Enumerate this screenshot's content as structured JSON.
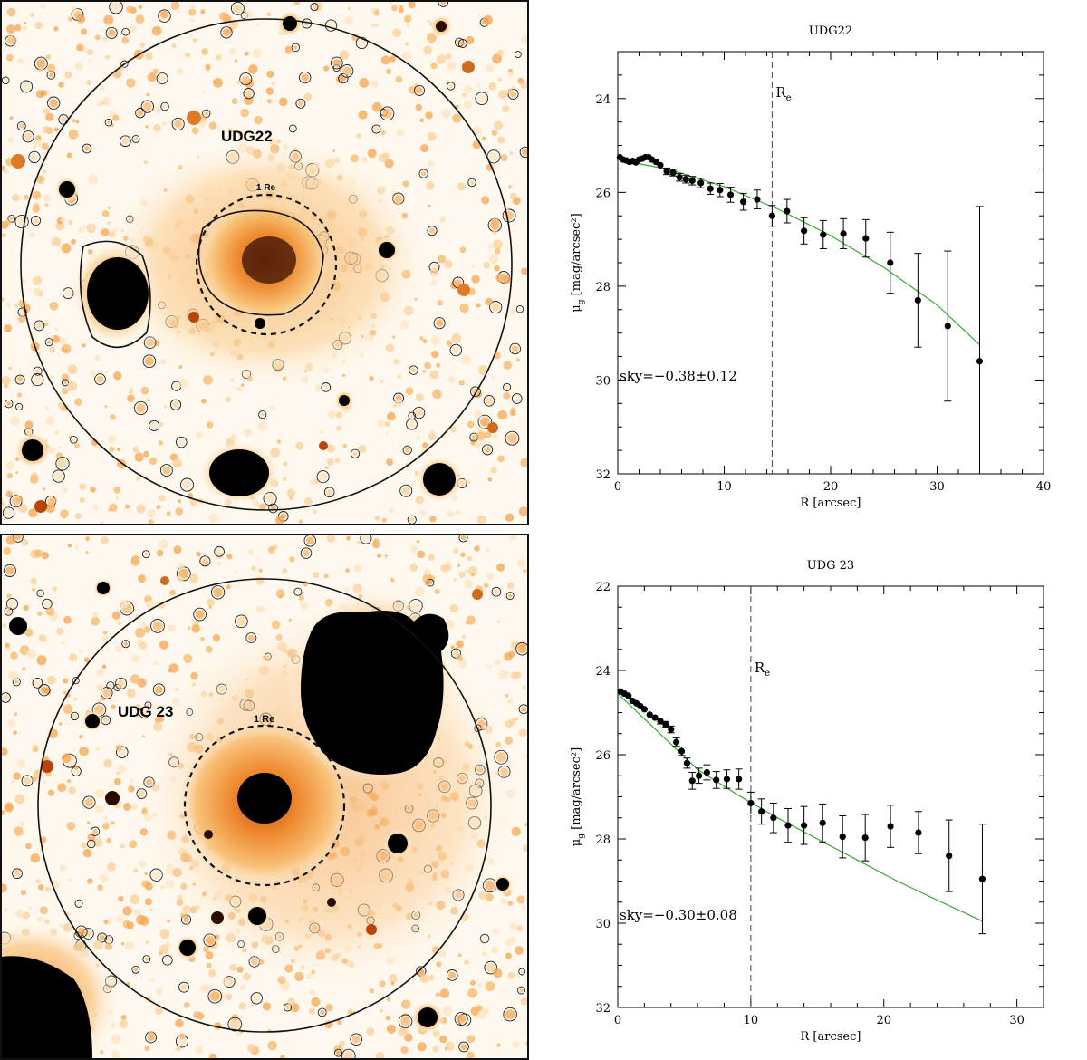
{
  "images": [
    {
      "label": "UDG22",
      "re_label": "1 Re"
    },
    {
      "label": "UDG 23",
      "re_label": "1 Re"
    }
  ],
  "colors": {
    "model_line": "#3aa832",
    "points": "#000000",
    "image_bright": "#e8781e",
    "image_mid": "#f5b865",
    "image_faint": "#fde4c0"
  },
  "chart_data": [
    {
      "type": "scatter",
      "title": "UDG22",
      "xlabel": "R [arcsec]",
      "ylabel": "μg [mag/arcsec²]",
      "ylabel_main": "μ",
      "ylabel_sub": "g",
      "ylabel_rest": " [mag/arcsec²]",
      "xlim": [
        0,
        40
      ],
      "ylim": [
        32,
        23
      ],
      "y_inverted": true,
      "xticks": [
        0,
        10,
        20,
        30,
        40
      ],
      "yticks": [
        24,
        26,
        28,
        30,
        32
      ],
      "re_value": 14.5,
      "re_label_main": "R",
      "re_label_sub": "e",
      "annotation": "sky=−0.38±0.12",
      "points": [
        {
          "x": 0.2,
          "y": 25.25,
          "err": 0.04
        },
        {
          "x": 0.5,
          "y": 25.3,
          "err": 0.04
        },
        {
          "x": 0.8,
          "y": 25.32,
          "err": 0.04
        },
        {
          "x": 1.1,
          "y": 25.35,
          "err": 0.05
        },
        {
          "x": 1.4,
          "y": 25.33,
          "err": 0.05
        },
        {
          "x": 1.7,
          "y": 25.36,
          "err": 0.05
        },
        {
          "x": 2.0,
          "y": 25.3,
          "err": 0.05
        },
        {
          "x": 2.3,
          "y": 25.28,
          "err": 0.05
        },
        {
          "x": 2.6,
          "y": 25.25,
          "err": 0.05
        },
        {
          "x": 2.9,
          "y": 25.25,
          "err": 0.05
        },
        {
          "x": 3.2,
          "y": 25.3,
          "err": 0.06
        },
        {
          "x": 3.6,
          "y": 25.35,
          "err": 0.06
        },
        {
          "x": 4.0,
          "y": 25.42,
          "err": 0.06
        },
        {
          "x": 4.6,
          "y": 25.55,
          "err": 0.07
        },
        {
          "x": 5.2,
          "y": 25.58,
          "err": 0.07
        },
        {
          "x": 5.8,
          "y": 25.68,
          "err": 0.08
        },
        {
          "x": 6.4,
          "y": 25.72,
          "err": 0.08
        },
        {
          "x": 7.0,
          "y": 25.75,
          "err": 0.09
        },
        {
          "x": 7.8,
          "y": 25.8,
          "err": 0.1
        },
        {
          "x": 8.7,
          "y": 25.92,
          "err": 0.12
        },
        {
          "x": 9.6,
          "y": 25.95,
          "err": 0.14
        },
        {
          "x": 10.6,
          "y": 26.05,
          "err": 0.16
        },
        {
          "x": 11.8,
          "y": 26.2,
          "err": 0.18
        },
        {
          "x": 13.1,
          "y": 26.15,
          "err": 0.2
        },
        {
          "x": 14.5,
          "y": 26.5,
          "err": 0.22
        },
        {
          "x": 15.9,
          "y": 26.4,
          "err": 0.25
        },
        {
          "x": 17.5,
          "y": 26.82,
          "err": 0.28
        },
        {
          "x": 19.3,
          "y": 26.9,
          "err": 0.3
        },
        {
          "x": 21.2,
          "y": 26.88,
          "err": 0.32
        },
        {
          "x": 23.3,
          "y": 26.98,
          "err": 0.4
        },
        {
          "x": 25.6,
          "y": 27.5,
          "err": 0.65
        },
        {
          "x": 28.2,
          "y": 28.3,
          "err": 1.0
        },
        {
          "x": 31.0,
          "y": 28.85,
          "err": 1.6
        },
        {
          "x": 34.0,
          "y": 29.6,
          "err": 3.3
        }
      ],
      "model": {
        "x": [
          0,
          5,
          10,
          15,
          20,
          25,
          30,
          34
        ],
        "y": [
          25.3,
          25.52,
          25.88,
          26.35,
          26.92,
          27.6,
          28.4,
          29.25
        ]
      }
    },
    {
      "type": "scatter",
      "title": "UDG 23",
      "xlabel": "R [arcsec]",
      "ylabel": "μg [mag/arcsec²]",
      "ylabel_main": "μ",
      "ylabel_sub": "g",
      "ylabel_rest": " [mag/arcsec²]",
      "xlim": [
        0,
        32
      ],
      "ylim": [
        32,
        22
      ],
      "y_inverted": true,
      "xticks": [
        0,
        10,
        20,
        30
      ],
      "yticks": [
        22,
        24,
        26,
        28,
        30,
        32
      ],
      "re_value": 10,
      "re_label_main": "R",
      "re_label_sub": "e",
      "annotation": "sky=−0.30±0.08",
      "points": [
        {
          "x": 0.2,
          "y": 24.5,
          "err": 0.04
        },
        {
          "x": 0.5,
          "y": 24.55,
          "err": 0.04
        },
        {
          "x": 0.8,
          "y": 24.6,
          "err": 0.04
        },
        {
          "x": 1.1,
          "y": 24.72,
          "err": 0.05
        },
        {
          "x": 1.4,
          "y": 24.78,
          "err": 0.05
        },
        {
          "x": 1.7,
          "y": 24.85,
          "err": 0.05
        },
        {
          "x": 2.0,
          "y": 24.92,
          "err": 0.05
        },
        {
          "x": 2.4,
          "y": 25.05,
          "err": 0.06
        },
        {
          "x": 2.8,
          "y": 25.12,
          "err": 0.06
        },
        {
          "x": 3.2,
          "y": 25.2,
          "err": 0.07
        },
        {
          "x": 3.6,
          "y": 25.28,
          "err": 0.07
        },
        {
          "x": 4.0,
          "y": 25.4,
          "err": 0.08
        },
        {
          "x": 4.4,
          "y": 25.7,
          "err": 0.1
        },
        {
          "x": 4.8,
          "y": 25.92,
          "err": 0.1
        },
        {
          "x": 5.2,
          "y": 26.2,
          "err": 0.12
        },
        {
          "x": 5.6,
          "y": 26.62,
          "err": 0.2
        },
        {
          "x": 6.1,
          "y": 26.5,
          "err": 0.18
        },
        {
          "x": 6.7,
          "y": 26.42,
          "err": 0.18
        },
        {
          "x": 7.4,
          "y": 26.6,
          "err": 0.2
        },
        {
          "x": 8.2,
          "y": 26.58,
          "err": 0.22
        },
        {
          "x": 9.1,
          "y": 26.58,
          "err": 0.24
        },
        {
          "x": 10.0,
          "y": 27.15,
          "err": 0.26
        },
        {
          "x": 10.8,
          "y": 27.35,
          "err": 0.3
        },
        {
          "x": 11.7,
          "y": 27.5,
          "err": 0.35
        },
        {
          "x": 12.8,
          "y": 27.68,
          "err": 0.4
        },
        {
          "x": 14.0,
          "y": 27.68,
          "err": 0.45
        },
        {
          "x": 15.4,
          "y": 27.62,
          "err": 0.45
        },
        {
          "x": 16.9,
          "y": 27.95,
          "err": 0.5
        },
        {
          "x": 18.6,
          "y": 27.97,
          "err": 0.55
        },
        {
          "x": 20.5,
          "y": 27.7,
          "err": 0.5
        },
        {
          "x": 22.6,
          "y": 27.85,
          "err": 0.5
        },
        {
          "x": 24.9,
          "y": 28.4,
          "err": 0.85
        },
        {
          "x": 27.4,
          "y": 28.95,
          "err": 1.3
        }
      ],
      "model": {
        "x": [
          0,
          3,
          6,
          9,
          12,
          15,
          18,
          21,
          24,
          27.4
        ],
        "y": [
          24.55,
          25.45,
          26.35,
          26.95,
          27.5,
          28.0,
          28.5,
          29.0,
          29.45,
          29.95
        ]
      }
    }
  ]
}
